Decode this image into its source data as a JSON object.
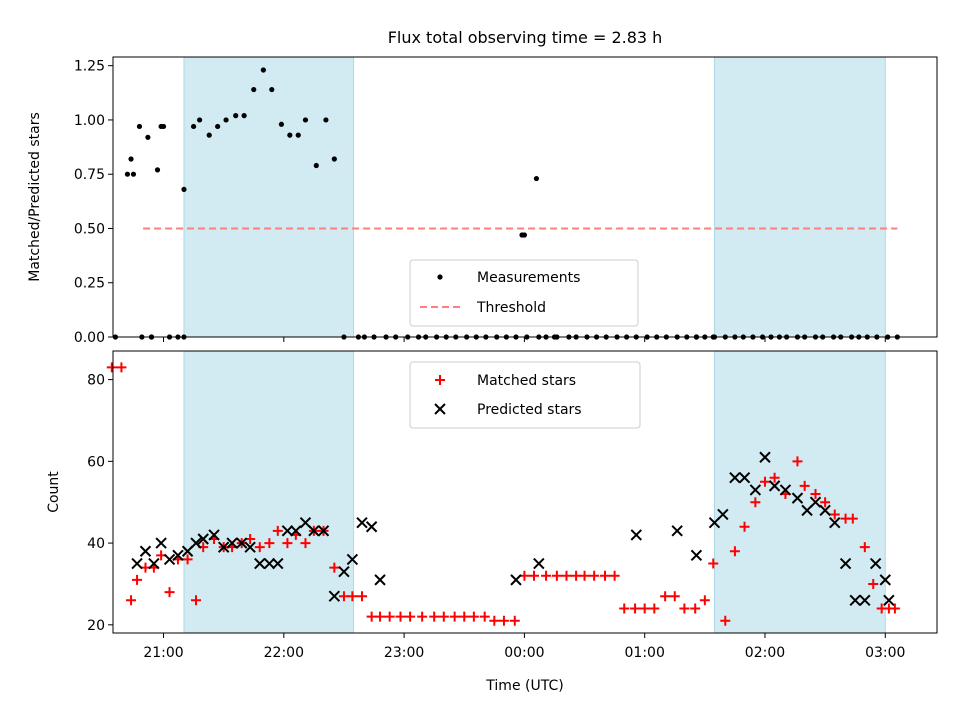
{
  "figure": {
    "title": "Flux total observing time = 2.83 h",
    "xlabel": "Time (UTC)",
    "xticks": [
      {
        "t": 21.0,
        "label": "21:00"
      },
      {
        "t": 22.0,
        "label": "22:00"
      },
      {
        "t": 23.0,
        "label": "23:00"
      },
      {
        "t": 24.0,
        "label": "00:00"
      },
      {
        "t": 25.0,
        "label": "01:00"
      },
      {
        "t": 26.0,
        "label": "02:00"
      },
      {
        "t": 27.0,
        "label": "03:00"
      }
    ],
    "xlim_hours": [
      20.58,
      27.43
    ],
    "shaded_intervals_hours": [
      [
        21.17,
        22.58
      ],
      [
        25.58,
        27.0
      ]
    ],
    "shade_color": "#add8e6",
    "colors": {
      "measurement": "#000000",
      "threshold": "#ff7f7f",
      "matched": "#ff0000",
      "predicted": "#000000"
    }
  },
  "chart_data": [
    {
      "type": "scatter",
      "ylabel": "Matched/Predicted stars",
      "ylim": [
        0,
        1.29
      ],
      "yticks": [
        "0.00",
        "0.25",
        "0.50",
        "0.75",
        "1.00",
        "1.25"
      ],
      "legend_position": "lower center",
      "threshold": {
        "name": "Threshold",
        "value": 0.5,
        "x_range_hours": [
          20.83,
          27.1
        ]
      },
      "series": [
        {
          "name": "Measurements",
          "x_hours": [
            20.82,
            20.9,
            21.17,
            21.25,
            21.3,
            21.38,
            21.45,
            21.52,
            21.6,
            21.67,
            21.75,
            21.83,
            21.9,
            21.98,
            22.05,
            22.12,
            22.18,
            22.27,
            22.35,
            22.42,
            22.5,
            22.62,
            22.75,
            21.05,
            21.0,
            20.95,
            20.87,
            20.8,
            20.73,
            21.12,
            20.7,
            20.75,
            20.6,
            20.98,
            22.67,
            22.85,
            22.93,
            23.03,
            23.12,
            23.18,
            23.27,
            23.35,
            23.43,
            23.52,
            23.6,
            23.68,
            23.77,
            23.85,
            23.93,
            24.02,
            24.12,
            24.18,
            24.27,
            24.37,
            24.43,
            24.52,
            24.6,
            24.68,
            24.77,
            24.85,
            24.93,
            25.02,
            25.1,
            25.18,
            25.27,
            25.35,
            25.43,
            25.5,
            25.58,
            25.67,
            25.75,
            25.82,
            25.9,
            25.98,
            26.05,
            26.12,
            26.18,
            26.27,
            26.33,
            26.42,
            26.48,
            26.57,
            26.63,
            26.72,
            26.78,
            26.85,
            26.93,
            27.02,
            27.1,
            20.9,
            21.17,
            24.25,
            25.43,
            25.57,
            24.0,
            24.1,
            23.98
          ],
          "y": [
            0.0,
            0.0,
            0.68,
            0.97,
            1.0,
            0.93,
            0.97,
            1.0,
            1.02,
            1.02,
            1.14,
            1.23,
            1.14,
            0.98,
            0.93,
            0.93,
            1.0,
            0.79,
            1.0,
            0.82,
            0.0,
            0.0,
            0.0,
            0.0,
            0.97,
            0.77,
            0.92,
            0.97,
            0.82,
            0.0,
            0.75,
            0.75,
            0.0,
            0.97,
            0.0,
            0.0,
            0.0,
            0.0,
            0.0,
            0.0,
            0.0,
            0.0,
            0.0,
            0.0,
            0.0,
            0.0,
            0.0,
            0.0,
            0.0,
            0.0,
            0.0,
            0.0,
            0.0,
            0.0,
            0.0,
            0.0,
            0.0,
            0.0,
            0.0,
            0.0,
            0.0,
            0.0,
            0.0,
            0.0,
            0.0,
            0.0,
            0.0,
            0.0,
            0.0,
            0.0,
            0.0,
            0.0,
            0.0,
            0.0,
            0.0,
            0.0,
            0.0,
            0.0,
            0.0,
            0.0,
            0.0,
            0.0,
            0.0,
            0.0,
            0.0,
            0.0,
            0.0,
            0.0,
            0.0,
            0.0,
            0.0,
            0.0,
            0.0,
            0.0,
            0.47,
            0.73,
            0.47
          ]
        }
      ]
    },
    {
      "type": "scatter",
      "ylabel": "Count",
      "ylim": [
        18,
        87
      ],
      "yticks": [
        "20",
        "40",
        "60",
        "80"
      ],
      "legend_position": "upper center",
      "series": [
        {
          "name": "Matched stars",
          "marker": "+",
          "x_hours": [
            20.57,
            20.65,
            20.73,
            20.78,
            20.85,
            20.92,
            20.98,
            21.05,
            21.12,
            21.2,
            21.27,
            21.33,
            21.42,
            21.5,
            21.57,
            21.65,
            21.72,
            21.8,
            21.88,
            21.95,
            22.03,
            22.1,
            22.18,
            22.25,
            22.33,
            22.42,
            22.5,
            22.57,
            22.65,
            22.73,
            22.8,
            22.88,
            22.97,
            23.05,
            23.15,
            23.25,
            23.33,
            23.42,
            23.5,
            23.58,
            23.67,
            23.75,
            23.83,
            23.92,
            24.0,
            24.08,
            24.18,
            24.27,
            24.35,
            24.43,
            24.5,
            24.58,
            24.67,
            24.75,
            24.83,
            24.92,
            25.0,
            25.08,
            25.17,
            25.25,
            25.33,
            25.42,
            25.5,
            25.57,
            25.67,
            25.75,
            25.83,
            25.92,
            26.0,
            26.08,
            26.17,
            26.27,
            26.33,
            26.42,
            26.5,
            26.58,
            26.67,
            26.73,
            26.83,
            26.9,
            26.97,
            27.03,
            27.08
          ],
          "y": [
            83,
            83,
            26,
            31,
            34,
            34,
            37,
            28,
            36,
            36,
            26,
            39,
            41,
            39,
            39,
            40,
            41,
            39,
            40,
            43,
            40,
            42,
            40,
            43,
            43,
            34,
            27,
            27,
            27,
            22,
            22,
            22,
            22,
            22,
            22,
            22,
            22,
            22,
            22,
            22,
            22,
            21,
            21,
            21,
            32,
            32,
            32,
            32,
            32,
            32,
            32,
            32,
            32,
            32,
            24,
            24,
            24,
            24,
            27,
            27,
            24,
            24,
            26,
            35,
            21,
            38,
            44,
            50,
            55,
            56,
            52,
            60,
            54,
            52,
            50,
            47,
            46,
            46,
            39,
            30,
            24,
            24,
            24
          ]
        },
        {
          "name": "Predicted stars",
          "marker": "x",
          "x_hours": [
            20.78,
            20.85,
            20.92,
            20.98,
            21.05,
            21.12,
            21.2,
            21.27,
            21.33,
            21.42,
            21.5,
            21.57,
            21.65,
            21.72,
            21.8,
            21.88,
            21.95,
            22.03,
            22.1,
            22.18,
            22.25,
            22.33,
            22.42,
            22.5,
            22.57,
            22.65,
            22.73,
            22.8,
            23.93,
            24.12,
            24.93,
            25.27,
            25.43,
            25.58,
            25.65,
            25.75,
            25.83,
            25.92,
            26.0,
            26.08,
            26.17,
            26.27,
            26.35,
            26.42,
            26.5,
            26.58,
            26.67,
            26.75,
            26.83,
            26.92,
            27.0,
            27.03
          ],
          "y": [
            35,
            38,
            35,
            40,
            36,
            37,
            38,
            40,
            41,
            42,
            39,
            40,
            40,
            39,
            35,
            35,
            35,
            43,
            43,
            45,
            43,
            43,
            27,
            33,
            36,
            45,
            44,
            31,
            31,
            35,
            42,
            43,
            37,
            45,
            47,
            56,
            56,
            53,
            61,
            54,
            53,
            51,
            48,
            50,
            48,
            45,
            35,
            26,
            26,
            35,
            31,
            26
          ]
        }
      ]
    }
  ]
}
